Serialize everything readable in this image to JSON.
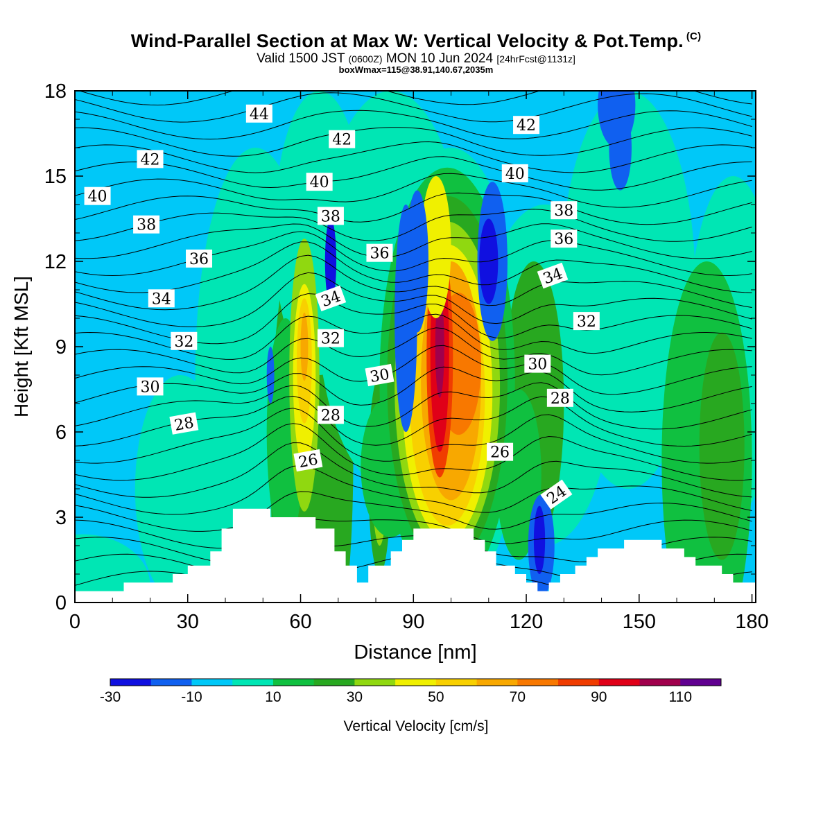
{
  "chart_data": {
    "type": "heatmap",
    "title": "Wind-Parallel Section at Max W: Vertical Velocity & Pot.Temp.",
    "title_mark": "(C)",
    "subtitle_main": "Valid 1500 JST",
    "subtitle_zulu": "(0600Z)",
    "subtitle_date": "MON 10 Jun 2024",
    "subtitle_fcst": "[24hrFcst@1131z]",
    "box_text": "boxWmax=115@38.91,140.67,2035m",
    "xlabel": "Distance [nm]",
    "ylabel": "Height [Kft MSL]",
    "xlim": [
      0,
      181
    ],
    "ylim": [
      0,
      18
    ],
    "x_ticks": [
      0,
      30,
      60,
      90,
      120,
      150,
      180
    ],
    "y_ticks": [
      0,
      3,
      6,
      9,
      12,
      15,
      18
    ],
    "colorbar": {
      "label": "Vertical Velocity [cm/s]",
      "levels": [
        -30,
        -20,
        -10,
        0,
        10,
        20,
        30,
        40,
        50,
        60,
        70,
        80,
        90,
        100,
        110,
        120
      ],
      "colors": [
        "#1010e0",
        "#1060f0",
        "#00c8f8",
        "#00e6b4",
        "#10c040",
        "#28a820",
        "#90d810",
        "#f0f000",
        "#f8d000",
        "#f8a800",
        "#f87800",
        "#f03c00",
        "#e00018",
        "#a0004c",
        "#600090"
      ],
      "tick_labels": [
        "-30",
        "-10",
        "10",
        "30",
        "50",
        "70",
        "90",
        "110"
      ]
    },
    "background_color": "#00c8f8",
    "terrain": [
      [
        0,
        0.4
      ],
      [
        13,
        0.4
      ],
      [
        13,
        0.7
      ],
      [
        26,
        0.7
      ],
      [
        26,
        1.0
      ],
      [
        30,
        1.0
      ],
      [
        30,
        1.3
      ],
      [
        36,
        1.3
      ],
      [
        36,
        1.8
      ],
      [
        39,
        1.8
      ],
      [
        39,
        2.6
      ],
      [
        42,
        2.6
      ],
      [
        42,
        3.3
      ],
      [
        52,
        3.3
      ],
      [
        52,
        3.0
      ],
      [
        64,
        3.0
      ],
      [
        64,
        2.6
      ],
      [
        69,
        2.6
      ],
      [
        69,
        1.8
      ],
      [
        72,
        1.8
      ],
      [
        72,
        1.3
      ],
      [
        75,
        1.3
      ],
      [
        75,
        0.7
      ],
      [
        78,
        0.7
      ],
      [
        78,
        1.3
      ],
      [
        84,
        1.3
      ],
      [
        84,
        1.8
      ],
      [
        87,
        1.8
      ],
      [
        87,
        2.2
      ],
      [
        90,
        2.2
      ],
      [
        90,
        2.6
      ],
      [
        106,
        2.6
      ],
      [
        106,
        2.2
      ],
      [
        109,
        2.2
      ],
      [
        109,
        1.8
      ],
      [
        112,
        1.8
      ],
      [
        112,
        1.3
      ],
      [
        117,
        1.3
      ],
      [
        117,
        1.0
      ],
      [
        120,
        1.0
      ],
      [
        120,
        0.7
      ],
      [
        123,
        0.7
      ],
      [
        123,
        0.4
      ],
      [
        126,
        0.4
      ],
      [
        126,
        0.7
      ],
      [
        129,
        0.7
      ],
      [
        129,
        1.0
      ],
      [
        133,
        1.0
      ],
      [
        133,
        1.3
      ],
      [
        136,
        1.3
      ],
      [
        136,
        1.6
      ],
      [
        139,
        1.6
      ],
      [
        139,
        1.9
      ],
      [
        146,
        1.9
      ],
      [
        146,
        2.2
      ],
      [
        156,
        2.2
      ],
      [
        156,
        1.9
      ],
      [
        162,
        1.9
      ],
      [
        162,
        1.6
      ],
      [
        165,
        1.6
      ],
      [
        165,
        1.3
      ],
      [
        172,
        1.3
      ],
      [
        172,
        1.0
      ],
      [
        175,
        1.0
      ],
      [
        175,
        0.7
      ],
      [
        181,
        0.7
      ],
      [
        181,
        0
      ]
    ],
    "w_features": [
      {
        "x": 2,
        "y": 0.6,
        "rx": 18,
        "ry": 1.8,
        "v": 5
      },
      {
        "x": 28,
        "y": 4,
        "rx": 12,
        "ry": 4,
        "v": 5
      },
      {
        "x": 48,
        "y": 8,
        "rx": 16,
        "ry": 8,
        "v": 5
      },
      {
        "x": 63,
        "y": 5,
        "rx": 11,
        "ry": 9,
        "v": 25
      },
      {
        "x": 65,
        "y": 13,
        "rx": 12,
        "ry": 5,
        "v": 5
      },
      {
        "x": 84,
        "y": 11,
        "rx": 20,
        "ry": 7,
        "v": 5
      },
      {
        "x": 100,
        "y": 8,
        "rx": 19,
        "ry": 8,
        "v": 5
      },
      {
        "x": 125,
        "y": 8,
        "rx": 18,
        "ry": 6,
        "v": 5
      },
      {
        "x": 147,
        "y": 11,
        "rx": 18,
        "ry": 7,
        "v": 5
      },
      {
        "x": 175,
        "y": 9,
        "rx": 12,
        "ry": 6,
        "v": 5
      },
      {
        "x": 168,
        "y": 5,
        "rx": 12,
        "ry": 7,
        "v": 15
      },
      {
        "x": 172,
        "y": 5.5,
        "rx": 6,
        "ry": 4,
        "v": 25
      },
      {
        "x": 122,
        "y": 7,
        "rx": 8,
        "ry": 5,
        "v": 25
      },
      {
        "x": 118,
        "y": 4.5,
        "rx": 6,
        "ry": 3,
        "v": 15
      },
      {
        "x": 56,
        "y": 6,
        "rx": 5,
        "ry": 4,
        "v": 15
      },
      {
        "x": 61,
        "y": 8,
        "rx": 4,
        "ry": 4.8,
        "v": 35
      },
      {
        "x": 61,
        "y": 8,
        "rx": 3,
        "ry": 3.2,
        "v": 45
      },
      {
        "x": 61,
        "y": 8.5,
        "rx": 2,
        "ry": 2.2,
        "v": 55
      },
      {
        "x": 61,
        "y": 9,
        "rx": 1,
        "ry": 1.2,
        "v": 65
      },
      {
        "x": 81,
        "y": 4.5,
        "rx": 3,
        "ry": 3.5,
        "v": 25
      },
      {
        "x": 81,
        "y": 4.5,
        "rx": 2,
        "ry": 2.5,
        "v": 35
      },
      {
        "x": 81,
        "y": 4.5,
        "rx": 1,
        "ry": 1.5,
        "v": 45
      },
      {
        "x": 84,
        "y": 4.8,
        "rx": 8,
        "ry": 2.5,
        "v": 15
      },
      {
        "x": 99,
        "y": 7.8,
        "rx": 18,
        "ry": 7.5,
        "v": 15
      },
      {
        "x": 99,
        "y": 7.8,
        "rx": 16,
        "ry": 6.5,
        "v": 25
      },
      {
        "x": 99,
        "y": 7.6,
        "rx": 14,
        "ry": 5.8,
        "v": 35
      },
      {
        "x": 99,
        "y": 7.4,
        "rx": 12,
        "ry": 5.2,
        "v": 45
      },
      {
        "x": 99,
        "y": 7.3,
        "rx": 10,
        "ry": 4.6,
        "v": 55
      },
      {
        "x": 100,
        "y": 7.8,
        "rx": 8,
        "ry": 4.2,
        "v": 65
      },
      {
        "x": 102,
        "y": 8.4,
        "rx": 6,
        "ry": 2.5,
        "v": 75
      },
      {
        "x": 97,
        "y": 8.6,
        "rx": 3.5,
        "ry": 4.2,
        "v": 85
      },
      {
        "x": 97,
        "y": 8.8,
        "rx": 2.5,
        "ry": 3.5,
        "v": 95
      },
      {
        "x": 97,
        "y": 9,
        "rx": 1.2,
        "ry": 1.8,
        "v": 105
      },
      {
        "x": 96,
        "y": 12.5,
        "rx": 4,
        "ry": 2.5,
        "v": 45
      },
      {
        "x": 88,
        "y": 10,
        "rx": 3,
        "ry": 4,
        "v": -15
      },
      {
        "x": 91,
        "y": 12,
        "rx": 3,
        "ry": 2.5,
        "v": -15
      },
      {
        "x": 111,
        "y": 12,
        "rx": 4,
        "ry": 2.8,
        "v": -15
      },
      {
        "x": 110,
        "y": 12,
        "rx": 2.5,
        "ry": 1.5,
        "v": -25
      },
      {
        "x": 68,
        "y": 12,
        "rx": 1.5,
        "ry": 1.5,
        "v": -25
      },
      {
        "x": 52,
        "y": 8,
        "rx": 1,
        "ry": 1,
        "v": -15
      },
      {
        "x": 124,
        "y": 2,
        "rx": 3.5,
        "ry": 1.8,
        "v": -15
      },
      {
        "x": 123.5,
        "y": 2.2,
        "rx": 1.5,
        "ry": 1.2,
        "v": -25
      },
      {
        "x": 144,
        "y": 17.5,
        "rx": 5,
        "ry": 1.5,
        "v": -15
      },
      {
        "x": 145,
        "y": 16,
        "rx": 3,
        "ry": 1.5,
        "v": -15
      }
    ],
    "theta_labels": [
      {
        "text": "44",
        "x": 49,
        "y": 17.2,
        "rot": 0
      },
      {
        "text": "42",
        "x": 20,
        "y": 15.6,
        "rot": 0
      },
      {
        "text": "42",
        "x": 71,
        "y": 16.3,
        "rot": 0
      },
      {
        "text": "42",
        "x": 120,
        "y": 16.8,
        "rot": 0
      },
      {
        "text": "40",
        "x": 6,
        "y": 14.3,
        "rot": 0
      },
      {
        "text": "40",
        "x": 65,
        "y": 14.8,
        "rot": 0
      },
      {
        "text": "40",
        "x": 117,
        "y": 15.1,
        "rot": 0
      },
      {
        "text": "38",
        "x": 19,
        "y": 13.3,
        "rot": 0
      },
      {
        "text": "38",
        "x": 68,
        "y": 13.6,
        "rot": 0
      },
      {
        "text": "38",
        "x": 130,
        "y": 13.8,
        "rot": 0
      },
      {
        "text": "36",
        "x": 33,
        "y": 12.1,
        "rot": 0
      },
      {
        "text": "36",
        "x": 81,
        "y": 12.3,
        "rot": 0
      },
      {
        "text": "36",
        "x": 130,
        "y": 12.8,
        "rot": 0
      },
      {
        "text": "34",
        "x": 23,
        "y": 10.7,
        "rot": 0
      },
      {
        "text": "34",
        "x": 68,
        "y": 10.7,
        "rot": -20
      },
      {
        "text": "34",
        "x": 127,
        "y": 11.5,
        "rot": -20
      },
      {
        "text": "32",
        "x": 29,
        "y": 9.2,
        "rot": 0
      },
      {
        "text": "32",
        "x": 68,
        "y": 9.3,
        "rot": 0
      },
      {
        "text": "32",
        "x": 136,
        "y": 9.9,
        "rot": 0
      },
      {
        "text": "30",
        "x": 20,
        "y": 7.6,
        "rot": 0
      },
      {
        "text": "30",
        "x": 81,
        "y": 8.0,
        "rot": -10
      },
      {
        "text": "30",
        "x": 123,
        "y": 8.4,
        "rot": 0
      },
      {
        "text": "28",
        "x": 29,
        "y": 6.3,
        "rot": -10
      },
      {
        "text": "28",
        "x": 68,
        "y": 6.6,
        "rot": 0
      },
      {
        "text": "28",
        "x": 129,
        "y": 7.2,
        "rot": 0
      },
      {
        "text": "26",
        "x": 62,
        "y": 5.0,
        "rot": -10
      },
      {
        "text": "26",
        "x": 113,
        "y": 5.3,
        "rot": 0
      },
      {
        "text": "24",
        "x": 128,
        "y": 3.8,
        "rot": -35
      }
    ]
  }
}
